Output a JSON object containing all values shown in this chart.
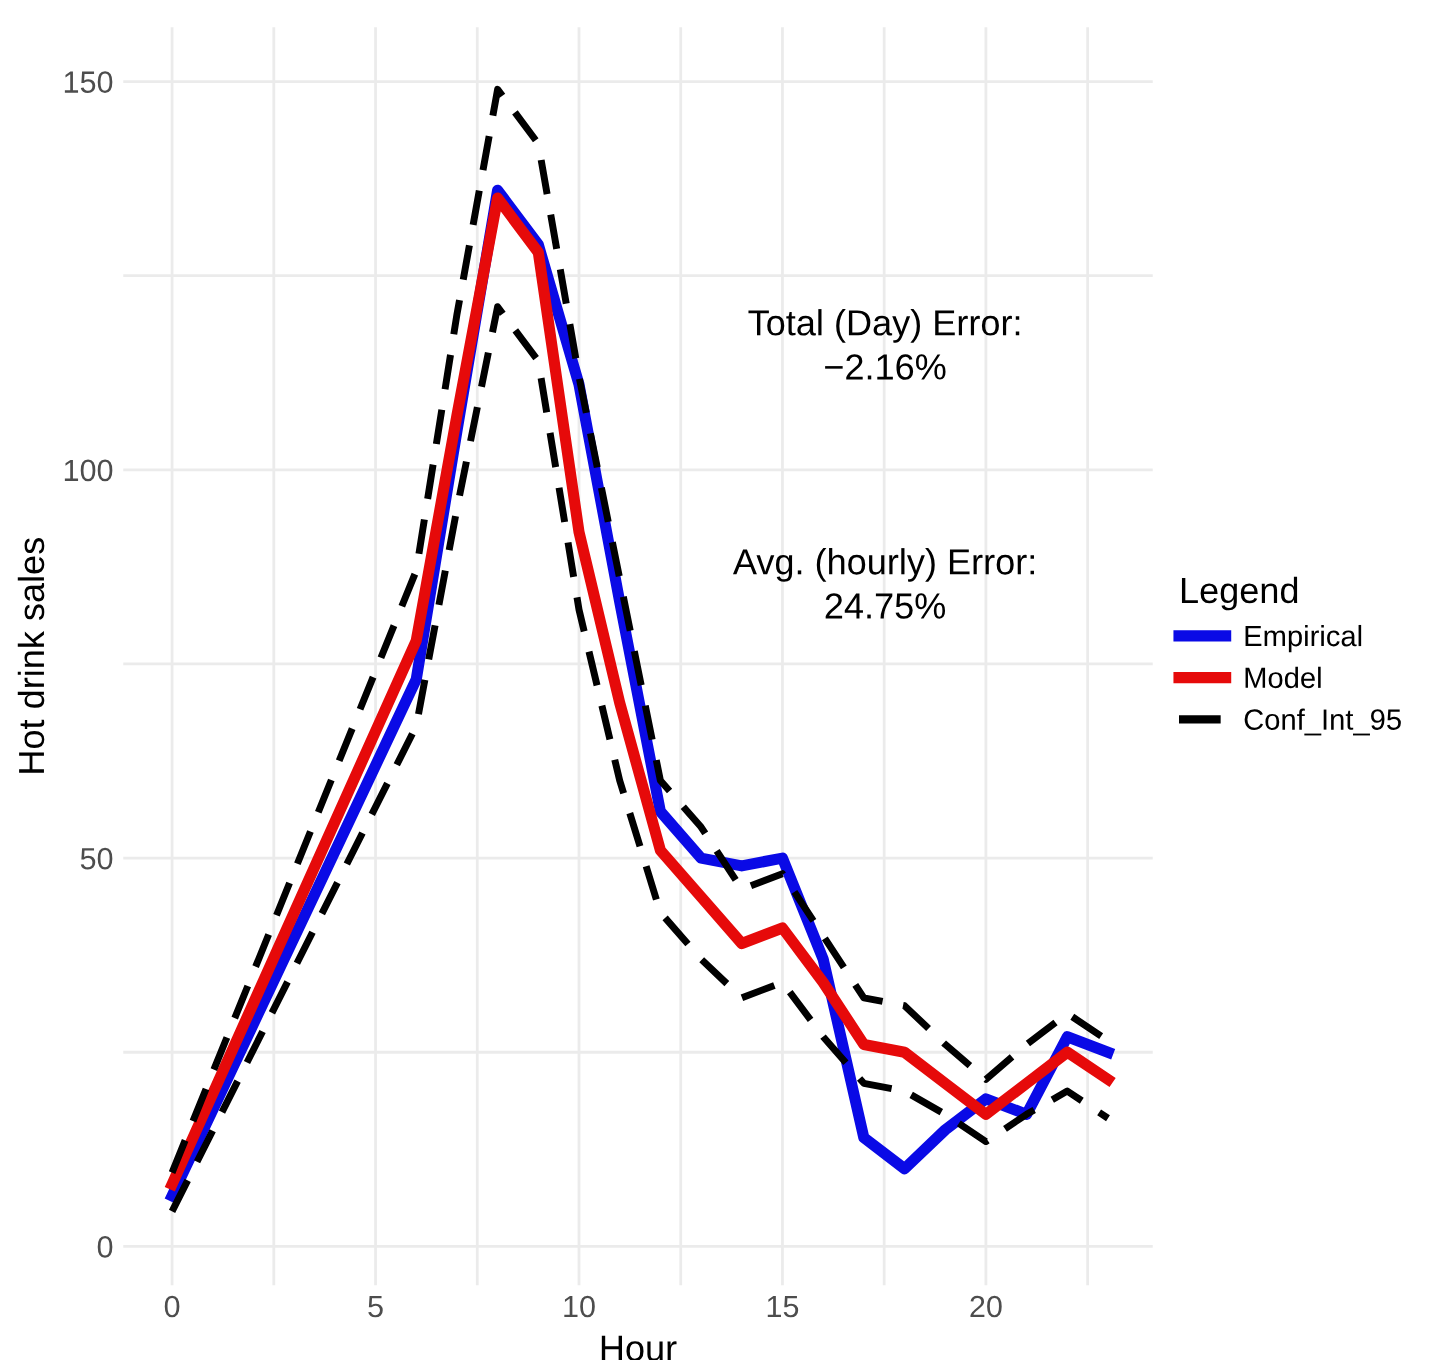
{
  "chart_data": {
    "type": "line",
    "xlabel": "Hour",
    "ylabel": "Hot drink sales",
    "legend_title": "Legend",
    "x": [
      0,
      6,
      7,
      8,
      9,
      10,
      11,
      12,
      13,
      14,
      15,
      16,
      17,
      18,
      19,
      20,
      21,
      22,
      23
    ],
    "series": [
      {
        "name": "Empirical",
        "color": "#0a0ae6",
        "line_style": "solid",
        "values": [
          6.5,
          73,
          105,
          136,
          129,
          111,
          83,
          56,
          50,
          49,
          50,
          37,
          14,
          10,
          15,
          19,
          17,
          27,
          25
        ]
      },
      {
        "name": "Model",
        "color": "#e60a0a",
        "line_style": "solid",
        "values": [
          8,
          78,
          107,
          135,
          128,
          92,
          70,
          51,
          45,
          39,
          41,
          34,
          26,
          25,
          21,
          17,
          21,
          25,
          21.5
        ]
      },
      {
        "name": "Conf_Int_95",
        "color": "#000000",
        "line_style": "dashed",
        "values": [
          9.5,
          87,
          120,
          149,
          142,
          112,
          86,
          60,
          54,
          46,
          48,
          40,
          32,
          31,
          26,
          21.5,
          26,
          30,
          26.5
        ]
      },
      {
        "color": "#000000",
        "line_style": "dashed",
        "values": [
          4.5,
          67,
          95,
          121,
          114,
          82,
          60,
          43,
          37,
          32,
          34,
          27,
          21,
          20,
          17,
          13.5,
          17,
          20,
          16.5
        ]
      }
    ],
    "annotations": [
      "Total (Day) Error:\n−2.16%",
      "Avg. (hourly) Error:\n24.75%"
    ],
    "xlim": [
      -1.2,
      24.1
    ],
    "ylim": [
      -5,
      157
    ],
    "xticks": [
      0,
      {
        "value": 2.5,
        "label": null
      },
      5,
      {
        "value": 7.5,
        "label": null
      },
      10,
      {
        "value": 12.5,
        "label": null
      },
      15,
      {
        "value": 17.5,
        "label": null
      },
      20,
      {
        "value": 22.5,
        "label": null
      }
    ],
    "yticks": [
      0,
      {
        "value": 25,
        "label": null
      },
      50,
      {
        "value": 75,
        "label": null
      },
      100,
      {
        "value": 125,
        "label": null
      },
      150
    ],
    "grid": true,
    "legend": "right",
    "marker": "none"
  }
}
